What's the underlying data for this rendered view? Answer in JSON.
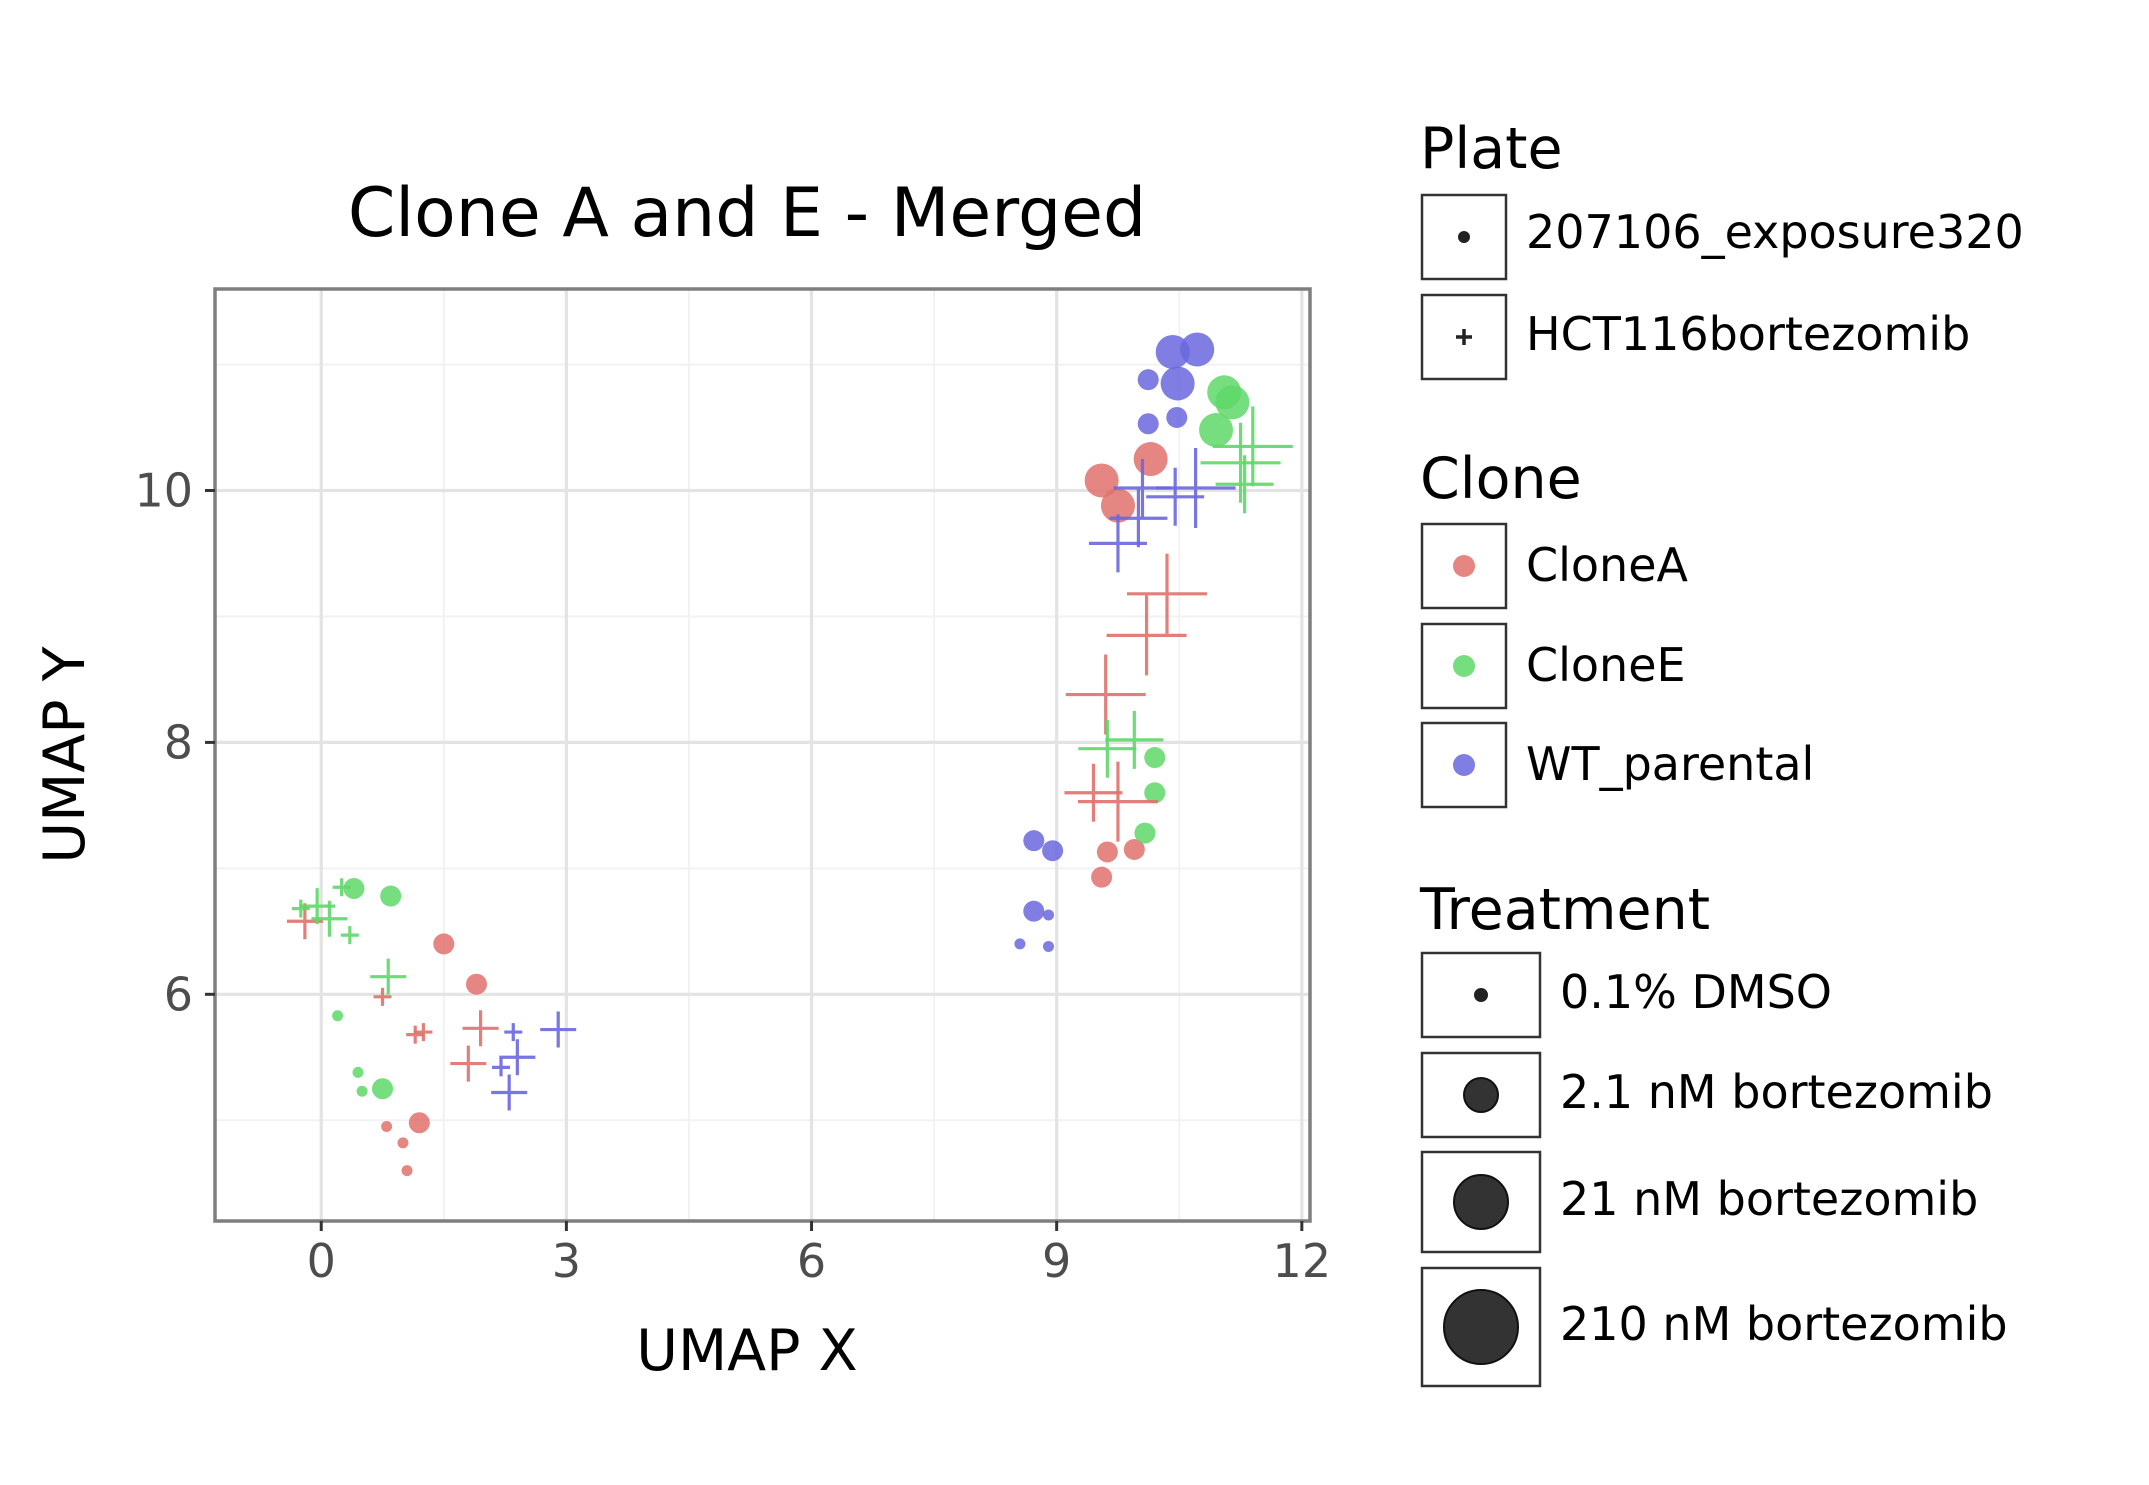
{
  "chart_data": {
    "type": "scatter",
    "title": "Clone A and E - Merged",
    "xlabel": "UMAP X",
    "ylabel": "UMAP Y",
    "xlim": [
      -1.3,
      12.1
    ],
    "ylim": [
      4.2,
      11.6
    ],
    "xticks": [
      0,
      3,
      6,
      9,
      12
    ],
    "xtick_labels": [
      "0",
      "3",
      "6",
      "9",
      "12"
    ],
    "yticks": [
      6,
      8,
      10
    ],
    "ytick_labels": [
      "6",
      "8",
      "10"
    ],
    "grid": true,
    "legend_position": "right",
    "legend": {
      "plate": {
        "title": "Plate",
        "items": [
          {
            "label": "207106_exposure320",
            "shape": "circle"
          },
          {
            "label": "HCT116bortezomib",
            "shape": "plus"
          }
        ]
      },
      "clone": {
        "title": "Clone",
        "items": [
          {
            "label": "CloneA",
            "color": "#E0716C"
          },
          {
            "label": "CloneE",
            "color": "#5ED867"
          },
          {
            "label": "WT_parental",
            "color": "#6A67DE"
          }
        ]
      },
      "treatment": {
        "title": "Treatment",
        "items": [
          {
            "label": "0.1% DMSO",
            "size": 1
          },
          {
            "label": "2.1 nM bortezomib",
            "size": 2
          },
          {
            "label": "21 nM bortezomib",
            "size": 3
          },
          {
            "label": "210 nM bortezomib",
            "size": 4
          }
        ]
      }
    },
    "points": [
      {
        "x": 0.8,
        "y": 4.95,
        "clone": "CloneA",
        "plate": "207106_exposure320",
        "size": 1
      },
      {
        "x": 1.0,
        "y": 4.82,
        "clone": "CloneA",
        "plate": "207106_exposure320",
        "size": 1
      },
      {
        "x": 1.05,
        "y": 4.6,
        "clone": "CloneA",
        "plate": "207106_exposure320",
        "size": 1
      },
      {
        "x": 1.2,
        "y": 4.98,
        "clone": "CloneA",
        "plate": "207106_exposure320",
        "size": 2
      },
      {
        "x": 1.9,
        "y": 6.08,
        "clone": "CloneA",
        "plate": "207106_exposure320",
        "size": 2
      },
      {
        "x": 1.5,
        "y": 6.4,
        "clone": "CloneA",
        "plate": "207106_exposure320",
        "size": 2
      },
      {
        "x": 9.55,
        "y": 10.08,
        "clone": "CloneA",
        "plate": "207106_exposure320",
        "size": 3
      },
      {
        "x": 9.75,
        "y": 9.88,
        "clone": "CloneA",
        "plate": "207106_exposure320",
        "size": 3
      },
      {
        "x": 10.15,
        "y": 10.25,
        "clone": "CloneA",
        "plate": "207106_exposure320",
        "size": 3
      },
      {
        "x": 9.55,
        "y": 6.93,
        "clone": "CloneA",
        "plate": "207106_exposure320",
        "size": 2
      },
      {
        "x": 9.62,
        "y": 7.13,
        "clone": "CloneA",
        "plate": "207106_exposure320",
        "size": 2
      },
      {
        "x": 9.95,
        "y": 7.15,
        "clone": "CloneA",
        "plate": "207106_exposure320",
        "size": 2
      },
      {
        "x": 0.4,
        "y": 6.84,
        "clone": "CloneE",
        "plate": "207106_exposure320",
        "size": 2
      },
      {
        "x": 0.85,
        "y": 6.78,
        "clone": "CloneE",
        "plate": "207106_exposure320",
        "size": 2
      },
      {
        "x": 0.2,
        "y": 5.83,
        "clone": "CloneE",
        "plate": "207106_exposure320",
        "size": 1
      },
      {
        "x": 0.45,
        "y": 5.38,
        "clone": "CloneE",
        "plate": "207106_exposure320",
        "size": 1
      },
      {
        "x": 0.5,
        "y": 5.23,
        "clone": "CloneE",
        "plate": "207106_exposure320",
        "size": 1
      },
      {
        "x": 0.75,
        "y": 5.25,
        "clone": "CloneE",
        "plate": "207106_exposure320",
        "size": 2
      },
      {
        "x": 10.95,
        "y": 10.48,
        "clone": "CloneE",
        "plate": "207106_exposure320",
        "size": 3
      },
      {
        "x": 11.05,
        "y": 10.78,
        "clone": "CloneE",
        "plate": "207106_exposure320",
        "size": 3
      },
      {
        "x": 11.15,
        "y": 10.7,
        "clone": "CloneE",
        "plate": "207106_exposure320",
        "size": 3
      },
      {
        "x": 10.2,
        "y": 7.88,
        "clone": "CloneE",
        "plate": "207106_exposure320",
        "size": 2
      },
      {
        "x": 10.2,
        "y": 7.6,
        "clone": "CloneE",
        "plate": "207106_exposure320",
        "size": 2
      },
      {
        "x": 10.08,
        "y": 7.28,
        "clone": "CloneE",
        "plate": "207106_exposure320",
        "size": 2
      },
      {
        "x": 10.42,
        "y": 11.1,
        "clone": "WT_parental",
        "plate": "207106_exposure320",
        "size": 3
      },
      {
        "x": 10.72,
        "y": 11.12,
        "clone": "WT_parental",
        "plate": "207106_exposure320",
        "size": 3
      },
      {
        "x": 10.48,
        "y": 10.85,
        "clone": "WT_parental",
        "plate": "207106_exposure320",
        "size": 3
      },
      {
        "x": 10.12,
        "y": 10.88,
        "clone": "WT_parental",
        "plate": "207106_exposure320",
        "size": 2
      },
      {
        "x": 10.12,
        "y": 10.53,
        "clone": "WT_parental",
        "plate": "207106_exposure320",
        "size": 2
      },
      {
        "x": 10.47,
        "y": 10.58,
        "clone": "WT_parental",
        "plate": "207106_exposure320",
        "size": 2
      },
      {
        "x": 8.72,
        "y": 7.22,
        "clone": "WT_parental",
        "plate": "207106_exposure320",
        "size": 2
      },
      {
        "x": 8.95,
        "y": 7.14,
        "clone": "WT_parental",
        "plate": "207106_exposure320",
        "size": 2
      },
      {
        "x": 8.72,
        "y": 6.66,
        "clone": "WT_parental",
        "plate": "207106_exposure320",
        "size": 2
      },
      {
        "x": 8.9,
        "y": 6.63,
        "clone": "WT_parental",
        "plate": "207106_exposure320",
        "size": 1
      },
      {
        "x": 8.55,
        "y": 6.4,
        "clone": "WT_parental",
        "plate": "207106_exposure320",
        "size": 1
      },
      {
        "x": 8.9,
        "y": 6.38,
        "clone": "WT_parental",
        "plate": "207106_exposure320",
        "size": 1
      },
      {
        "x": -0.2,
        "y": 6.58,
        "clone": "CloneA",
        "plate": "HCT116bortezomib",
        "size": 2
      },
      {
        "x": 0.75,
        "y": 5.98,
        "clone": "CloneA",
        "plate": "HCT116bortezomib",
        "size": 1
      },
      {
        "x": 1.15,
        "y": 5.68,
        "clone": "CloneA",
        "plate": "HCT116bortezomib",
        "size": 1
      },
      {
        "x": 1.25,
        "y": 5.7,
        "clone": "CloneA",
        "plate": "HCT116bortezomib",
        "size": 1
      },
      {
        "x": 1.95,
        "y": 5.73,
        "clone": "CloneA",
        "plate": "HCT116bortezomib",
        "size": 2
      },
      {
        "x": 1.8,
        "y": 5.45,
        "clone": "CloneA",
        "plate": "HCT116bortezomib",
        "size": 2
      },
      {
        "x": 9.6,
        "y": 8.38,
        "clone": "CloneA",
        "plate": "HCT116bortezomib",
        "size": 4
      },
      {
        "x": 9.45,
        "y": 7.6,
        "clone": "CloneA",
        "plate": "HCT116bortezomib",
        "size": 3
      },
      {
        "x": 9.75,
        "y": 7.53,
        "clone": "CloneA",
        "plate": "HCT116bortezomib",
        "size": 4
      },
      {
        "x": 10.1,
        "y": 8.85,
        "clone": "CloneA",
        "plate": "HCT116bortezomib",
        "size": 4
      },
      {
        "x": 10.35,
        "y": 9.18,
        "clone": "CloneA",
        "plate": "HCT116bortezomib",
        "size": 4
      },
      {
        "x": -0.25,
        "y": 6.68,
        "clone": "CloneE",
        "plate": "HCT116bortezomib",
        "size": 1
      },
      {
        "x": -0.05,
        "y": 6.7,
        "clone": "CloneE",
        "plate": "HCT116bortezomib",
        "size": 2
      },
      {
        "x": 0.1,
        "y": 6.6,
        "clone": "CloneE",
        "plate": "HCT116bortezomib",
        "size": 2
      },
      {
        "x": 0.25,
        "y": 6.85,
        "clone": "CloneE",
        "plate": "HCT116bortezomib",
        "size": 1
      },
      {
        "x": 0.35,
        "y": 6.47,
        "clone": "CloneE",
        "plate": "HCT116bortezomib",
        "size": 1
      },
      {
        "x": 0.82,
        "y": 6.14,
        "clone": "CloneE",
        "plate": "HCT116bortezomib",
        "size": 2
      },
      {
        "x": 9.62,
        "y": 7.95,
        "clone": "CloneE",
        "plate": "HCT116bortezomib",
        "size": 3
      },
      {
        "x": 9.95,
        "y": 8.02,
        "clone": "CloneE",
        "plate": "HCT116bortezomib",
        "size": 3
      },
      {
        "x": 11.25,
        "y": 10.22,
        "clone": "CloneE",
        "plate": "HCT116bortezomib",
        "size": 4
      },
      {
        "x": 11.4,
        "y": 10.35,
        "clone": "CloneE",
        "plate": "HCT116bortezomib",
        "size": 4
      },
      {
        "x": 11.3,
        "y": 10.05,
        "clone": "CloneE",
        "plate": "HCT116bortezomib",
        "size": 3
      },
      {
        "x": 2.35,
        "y": 5.7,
        "clone": "WT_parental",
        "plate": "HCT116bortezomib",
        "size": 1
      },
      {
        "x": 2.9,
        "y": 5.72,
        "clone": "WT_parental",
        "plate": "HCT116bortezomib",
        "size": 2
      },
      {
        "x": 2.4,
        "y": 5.5,
        "clone": "WT_parental",
        "plate": "HCT116bortezomib",
        "size": 2
      },
      {
        "x": 2.2,
        "y": 5.42,
        "clone": "WT_parental",
        "plate": "HCT116bortezomib",
        "size": 1
      },
      {
        "x": 2.3,
        "y": 5.22,
        "clone": "WT_parental",
        "plate": "HCT116bortezomib",
        "size": 2
      },
      {
        "x": 9.75,
        "y": 9.58,
        "clone": "WT_parental",
        "plate": "HCT116bortezomib",
        "size": 3
      },
      {
        "x": 10.0,
        "y": 9.78,
        "clone": "WT_parental",
        "plate": "HCT116bortezomib",
        "size": 3
      },
      {
        "x": 10.05,
        "y": 10.02,
        "clone": "WT_parental",
        "plate": "HCT116bortezomib",
        "size": 3
      },
      {
        "x": 10.45,
        "y": 9.95,
        "clone": "WT_parental",
        "plate": "HCT116bortezomib",
        "size": 3
      },
      {
        "x": 10.7,
        "y": 10.02,
        "clone": "WT_parental",
        "plate": "HCT116bortezomib",
        "size": 4
      }
    ]
  }
}
